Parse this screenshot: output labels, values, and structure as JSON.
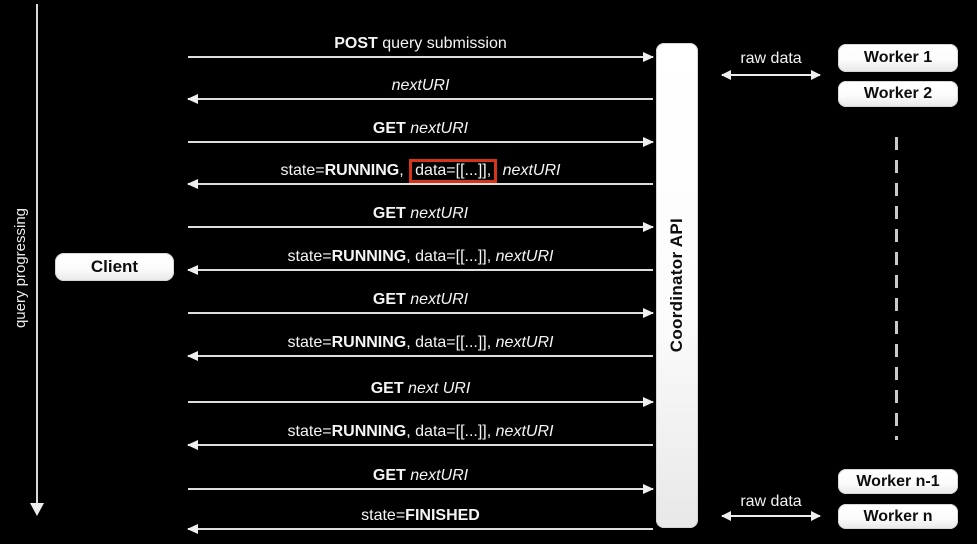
{
  "left_axis": {
    "label": "query progressing"
  },
  "client": {
    "label": "Client"
  },
  "coordinator": {
    "label": "Coordinator API"
  },
  "workers_top": [
    {
      "label": "Worker 1"
    },
    {
      "label": "Worker 2"
    }
  ],
  "workers_bottom": [
    {
      "label": "Worker n-1"
    },
    {
      "label": "Worker n"
    }
  ],
  "raw_data_top": {
    "label": "raw data"
  },
  "raw_data_bottom": {
    "label": "raw data"
  },
  "colors": {
    "highlight_red": "#d6341a",
    "arrow_line": "#dedede",
    "box_fill": "#ffffff",
    "background": "#000000"
  },
  "messages": [
    {
      "direction": "right",
      "parts": [
        {
          "t": "POST",
          "b": true
        },
        {
          "t": " query submission"
        }
      ]
    },
    {
      "direction": "left",
      "parts": [
        {
          "t": "nextURI",
          "i": true
        }
      ]
    },
    {
      "direction": "right",
      "parts": [
        {
          "t": "GET",
          "b": true
        },
        {
          "t": " "
        },
        {
          "t": "nextURI",
          "i": true
        }
      ]
    },
    {
      "direction": "left",
      "parts": [
        {
          "t": "state="
        },
        {
          "t": "RUNNING",
          "b": true
        },
        {
          "t": ", "
        },
        {
          "t": "data=[[...]],",
          "hl": true
        },
        {
          "t": " "
        },
        {
          "t": "nextURI",
          "i": true
        }
      ]
    },
    {
      "direction": "right",
      "parts": [
        {
          "t": "GET",
          "b": true
        },
        {
          "t": " "
        },
        {
          "t": "nextURI",
          "i": true
        }
      ]
    },
    {
      "direction": "left",
      "parts": [
        {
          "t": "state="
        },
        {
          "t": "RUNNING",
          "b": true
        },
        {
          "t": ", data=[[...]], "
        },
        {
          "t": "nextURI",
          "i": true
        }
      ]
    },
    {
      "direction": "right",
      "parts": [
        {
          "t": "GET",
          "b": true
        },
        {
          "t": " "
        },
        {
          "t": "nextURI",
          "i": true
        }
      ]
    },
    {
      "direction": "left",
      "parts": [
        {
          "t": "state="
        },
        {
          "t": "RUNNING",
          "b": true
        },
        {
          "t": ", data=[[...]], "
        },
        {
          "t": "nextURI",
          "i": true
        }
      ]
    },
    {
      "direction": "right",
      "parts": [
        {
          "t": "GET",
          "b": true
        },
        {
          "t": " "
        },
        {
          "t": "next URI",
          "i": true
        }
      ]
    },
    {
      "direction": "left",
      "parts": [
        {
          "t": "state="
        },
        {
          "t": "RUNNING",
          "b": true
        },
        {
          "t": ", data=[[...]], "
        },
        {
          "t": "nextURI",
          "i": true
        }
      ]
    },
    {
      "direction": "right",
      "parts": [
        {
          "t": "GET",
          "b": true
        },
        {
          "t": " "
        },
        {
          "t": "nextURI",
          "i": true
        }
      ]
    },
    {
      "direction": "left",
      "parts": [
        {
          "t": "state="
        },
        {
          "t": "FINISHED",
          "b": true
        }
      ]
    }
  ]
}
